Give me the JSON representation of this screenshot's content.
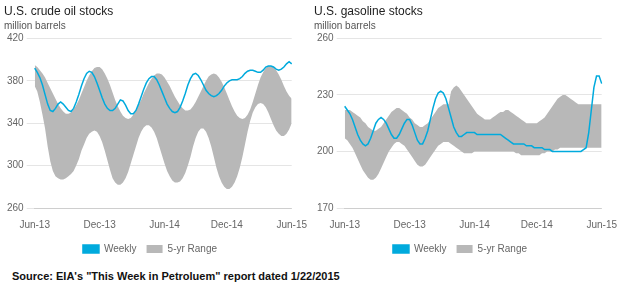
{
  "source": "Source: EIA's \"This Week in Petroluem\" report dated 1/22/2015",
  "chart_data": [
    {
      "type": "line",
      "title": "U.S. crude oil stocks",
      "subtitle": "million barrels",
      "categories": [
        "Jun-13",
        null,
        null,
        null,
        null,
        null,
        null,
        null,
        null,
        null,
        null,
        null,
        null,
        null,
        null,
        null,
        null,
        null,
        null,
        null,
        null,
        null,
        null,
        null,
        null,
        "Dec-13",
        null,
        null,
        null,
        null,
        null,
        null,
        null,
        null,
        null,
        null,
        null,
        null,
        null,
        null,
        null,
        null,
        null,
        null,
        null,
        null,
        null,
        null,
        null,
        null,
        "Jun-14",
        null,
        null,
        null,
        null,
        null,
        null,
        null,
        null,
        null,
        null,
        null,
        null,
        null,
        null,
        null,
        null,
        null,
        null,
        null,
        null,
        null,
        null,
        null,
        "Dec-14",
        null,
        null,
        null,
        null,
        null,
        null,
        null,
        null,
        null,
        null,
        null,
        null,
        null,
        null,
        null,
        null,
        null,
        null,
        null,
        null,
        null,
        null,
        null,
        null,
        "Jun-15"
      ],
      "series": [
        {
          "name": "5-yr Range",
          "type": "range",
          "color": "#b8b8b8",
          "low": [
            375,
            370,
            360,
            348,
            335,
            318,
            304,
            295,
            290,
            288,
            287,
            287,
            288,
            290,
            292,
            295,
            300,
            306,
            314,
            320,
            326,
            330,
            332,
            333,
            332,
            328,
            322,
            314,
            305,
            296,
            288,
            284,
            282,
            282,
            284,
            288,
            294,
            302,
            310,
            318,
            326,
            332,
            336,
            338,
            338,
            336,
            332,
            326,
            318,
            310,
            302,
            295,
            290,
            286,
            284,
            284,
            285,
            288,
            293,
            300,
            308,
            318,
            326,
            332,
            335,
            335,
            332,
            326,
            318,
            308,
            298,
            290,
            284,
            280,
            278,
            278,
            280,
            284,
            290,
            298,
            308,
            320,
            332,
            342,
            350,
            355,
            358,
            359,
            358,
            355,
            350,
            344,
            338,
            333,
            330,
            328,
            328,
            330,
            334,
            340
          ],
          "high": [
            395,
            393,
            390,
            387,
            383,
            378,
            373,
            368,
            363,
            358,
            354,
            351,
            349,
            349,
            350,
            353,
            357,
            362,
            368,
            374,
            380,
            385,
            389,
            392,
            393,
            393,
            391,
            387,
            382,
            376,
            369,
            362,
            356,
            351,
            347,
            345,
            344,
            345,
            348,
            352,
            357,
            362,
            368,
            373,
            378,
            382,
            385,
            387,
            387,
            386,
            383,
            379,
            375,
            370,
            365,
            361,
            357,
            354,
            352,
            352,
            353,
            356,
            360,
            365,
            370,
            375,
            380,
            384,
            386,
            387,
            386,
            383,
            379,
            374,
            368,
            362,
            356,
            351,
            347,
            345,
            344,
            345,
            348,
            353,
            360,
            368,
            376,
            383,
            388,
            392,
            394,
            394,
            393,
            390,
            386,
            381,
            375,
            370,
            366,
            363
          ]
        },
        {
          "name": "Weekly",
          "type": "line",
          "color": "#00aadd",
          "values": [
            392,
            388,
            383,
            376,
            367,
            358,
            352,
            351,
            354,
            358,
            360,
            358,
            355,
            352,
            351,
            354,
            360,
            367,
            375,
            382,
            387,
            389,
            388,
            384,
            378,
            371,
            364,
            358,
            354,
            352,
            352,
            354,
            358,
            362,
            361,
            357,
            352,
            349,
            349,
            352,
            358,
            365,
            372,
            378,
            382,
            384,
            384,
            381,
            376,
            370,
            364,
            358,
            354,
            351,
            350,
            351,
            355,
            361,
            368,
            376,
            382,
            386,
            387,
            385,
            381,
            376,
            371,
            368,
            366,
            365,
            366,
            368,
            371,
            375,
            378,
            380,
            381,
            381,
            381,
            382,
            384,
            387,
            389,
            390,
            390,
            389,
            388,
            388,
            390,
            393,
            394,
            394,
            393,
            391,
            390,
            391,
            393,
            396,
            398,
            396
          ]
        }
      ],
      "ylim": [
        260,
        420
      ],
      "yticks": [
        260,
        300,
        340,
        380,
        420
      ],
      "grid": "y",
      "legend": "bottom"
    },
    {
      "type": "line",
      "title": "U.S. gasoline stocks",
      "subtitle": "million barrels",
      "categories": [
        "Jun-13",
        null,
        null,
        null,
        null,
        null,
        null,
        null,
        null,
        null,
        null,
        null,
        null,
        null,
        null,
        null,
        null,
        null,
        null,
        null,
        null,
        null,
        null,
        null,
        null,
        "Dec-13",
        null,
        null,
        null,
        null,
        null,
        null,
        null,
        null,
        null,
        null,
        null,
        null,
        null,
        null,
        null,
        null,
        null,
        null,
        null,
        null,
        null,
        null,
        null,
        null,
        "Jun-14",
        null,
        null,
        null,
        null,
        null,
        null,
        null,
        null,
        null,
        null,
        null,
        null,
        null,
        null,
        null,
        null,
        null,
        null,
        null,
        null,
        null,
        null,
        null,
        "Dec-14",
        null,
        null,
        null,
        null,
        null,
        null,
        null,
        null,
        null,
        null,
        null,
        null,
        null,
        null,
        null,
        null,
        null,
        null,
        null,
        null,
        null,
        null,
        null,
        null,
        "Jun-15"
      ],
      "series": [
        {
          "name": "5-yr Range",
          "type": "range",
          "color": "#b8b8b8",
          "low": [
            207,
            206,
            204,
            202,
            199,
            196,
            193,
            190,
            188,
            186,
            185,
            185,
            186,
            188,
            191,
            194,
            197,
            200,
            202,
            204,
            205,
            205,
            204,
            203,
            201,
            199,
            197,
            195,
            193,
            192,
            192,
            193,
            195,
            197,
            199,
            201,
            203,
            204,
            205,
            205,
            205,
            204,
            203,
            202,
            201,
            200,
            199,
            199,
            199,
            199,
            200,
            200,
            200,
            200,
            200,
            200,
            200,
            200,
            200,
            200,
            200,
            200,
            200,
            200,
            200,
            200,
            199,
            199,
            198,
            198,
            198,
            198,
            198,
            198,
            198,
            198,
            199,
            199,
            200,
            200,
            200,
            201,
            201,
            202,
            202,
            202,
            202,
            202,
            202,
            202,
            202,
            202,
            202,
            202,
            202,
            202,
            202,
            202,
            202,
            202
          ],
          "high": [
            222,
            222,
            222,
            221,
            220,
            219,
            218,
            216,
            215,
            213,
            212,
            211,
            211,
            212,
            213,
            215,
            217,
            219,
            221,
            222,
            223,
            223,
            222,
            221,
            220,
            218,
            217,
            215,
            214,
            213,
            213,
            214,
            215,
            217,
            219,
            221,
            223,
            224,
            225,
            225,
            225,
            232,
            234,
            235,
            234,
            232,
            230,
            228,
            226,
            224,
            222,
            220,
            219,
            218,
            217,
            217,
            217,
            218,
            219,
            220,
            221,
            221,
            222,
            222,
            221,
            220,
            219,
            218,
            217,
            216,
            215,
            215,
            215,
            215,
            215,
            216,
            217,
            218,
            220,
            222,
            224,
            226,
            228,
            229,
            230,
            230,
            229,
            228,
            227,
            226,
            225,
            225,
            225,
            225,
            225,
            225,
            225,
            225,
            225,
            225
          ]
        },
        {
          "name": "Weekly",
          "type": "line",
          "color": "#00aadd",
          "values": [
            224,
            222,
            220,
            217,
            213,
            209,
            206,
            204,
            203,
            204,
            207,
            211,
            215,
            217,
            218,
            217,
            215,
            212,
            209,
            207,
            207,
            209,
            212,
            215,
            217,
            217,
            214,
            210,
            206,
            204,
            204,
            207,
            211,
            217,
            223,
            228,
            231,
            232,
            231,
            228,
            223,
            218,
            213,
            210,
            208,
            208,
            209,
            210,
            210,
            210,
            210,
            209,
            209,
            209,
            209,
            209,
            209,
            209,
            209,
            209,
            209,
            208,
            207,
            206,
            205,
            204,
            204,
            204,
            204,
            204,
            203,
            203,
            203,
            202,
            202,
            202,
            202,
            201,
            201,
            201,
            200,
            200,
            200,
            200,
            200,
            200,
            200,
            200,
            200,
            200,
            200,
            200,
            201,
            202,
            210,
            222,
            234,
            240,
            240,
            236
          ]
        }
      ],
      "ylim": [
        170,
        260
      ],
      "yticks": [
        170,
        200,
        230,
        260
      ],
      "grid": "y",
      "legend": "bottom"
    }
  ]
}
